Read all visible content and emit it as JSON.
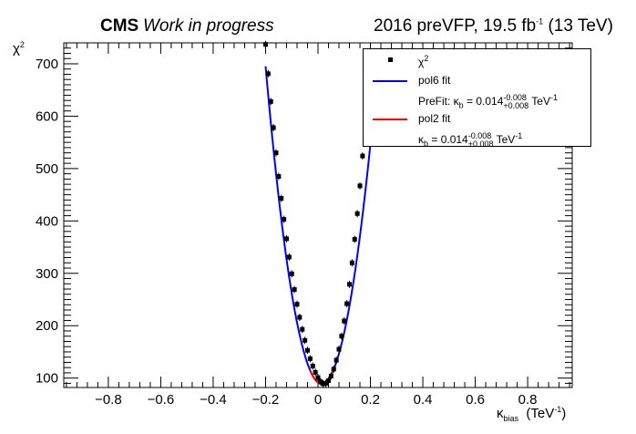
{
  "header": {
    "cms": "CMS",
    "status": "Work in progress",
    "lumi_prefix": "2016 preVFP, 19.5 fb",
    "lumi_exp": "-1",
    "energy": "(13 TeV)"
  },
  "axes": {
    "y_label": "χ",
    "y_label_sup": "2",
    "x_label": "κ",
    "x_label_sub": "bias",
    "x_label_unit": "(TeV",
    "x_label_unit_sup": "-1",
    "x_label_close": ")"
  },
  "legend": {
    "chi2_label": "χ",
    "chi2_sup": "2",
    "pol6_label": "pol6 fit",
    "prefit_prefix": "PreFit: κ",
    "prefit_sub": "b",
    "prefit_value": " = 0.014",
    "prefit_up": "-0.008",
    "prefit_down": "+0.008",
    "prefit_unit": " TeV",
    "prefit_unit_sup": "-1",
    "pol2_label": "pol2 fit",
    "fit_prefix": "κ",
    "fit_sub": "b",
    "fit_value": " = 0.014",
    "fit_up": "-0.008",
    "fit_down": "+0.008",
    "fit_unit": " TeV",
    "fit_unit_sup": "-1"
  },
  "colors": {
    "points": "#000000",
    "pol6": "#0000ff",
    "pol2": "#ff0000"
  },
  "chart_data": {
    "type": "scatter",
    "xlim": [
      -0.97,
      0.97
    ],
    "ylim": [
      82,
      740
    ],
    "x_ticks": [
      -0.8,
      -0.6,
      -0.4,
      -0.2,
      0,
      0.2,
      0.4,
      0.6,
      0.8
    ],
    "x_tick_labels": [
      "−0.8",
      "−0.6",
      "−0.4",
      "−0.2",
      "0",
      "0.2",
      "0.4",
      "0.6",
      "0.8"
    ],
    "y_ticks": [
      100,
      200,
      300,
      400,
      500,
      600,
      700
    ],
    "y_tick_labels": [
      "100",
      "200",
      "300",
      "400",
      "500",
      "600",
      "700"
    ],
    "minimum_x": 0.014,
    "minimum_y": 89,
    "series": [
      {
        "name": "χ2",
        "x": [
          -0.2,
          -0.19,
          -0.18,
          -0.17,
          -0.16,
          -0.15,
          -0.14,
          -0.13,
          -0.12,
          -0.11,
          -0.1,
          -0.09,
          -0.08,
          -0.07,
          -0.06,
          -0.05,
          -0.04,
          -0.03,
          -0.02,
          -0.01,
          0.0,
          0.01,
          0.02,
          0.03,
          0.04,
          0.05,
          0.06,
          0.07,
          0.08,
          0.09,
          0.1,
          0.11,
          0.12,
          0.13,
          0.14,
          0.15,
          0.16,
          0.17,
          0.18,
          0.19,
          0.2
        ],
        "y": [
          737,
          681,
          628,
          578,
          530,
          485,
          443,
          403,
          366,
          331,
          299,
          269,
          241,
          216,
          193,
          172,
          153,
          137,
          123,
          111,
          101,
          93,
          89,
          90,
          95,
          104,
          117,
          134,
          155,
          180,
          209,
          242,
          279,
          320,
          365,
          414,
          467,
          524,
          585,
          650,
          720
        ]
      },
      {
        "name": "pol6 fit",
        "x_range": [
          -0.2,
          0.2
        ],
        "model": "parabola",
        "vertex": [
          0.014,
          89
        ],
        "curvature": 13240
      },
      {
        "name": "pol2 fit",
        "x_range": [
          -0.03,
          0.06
        ],
        "model": "parabola",
        "vertex": [
          0.014,
          89
        ],
        "curvature": 13240
      }
    ]
  }
}
